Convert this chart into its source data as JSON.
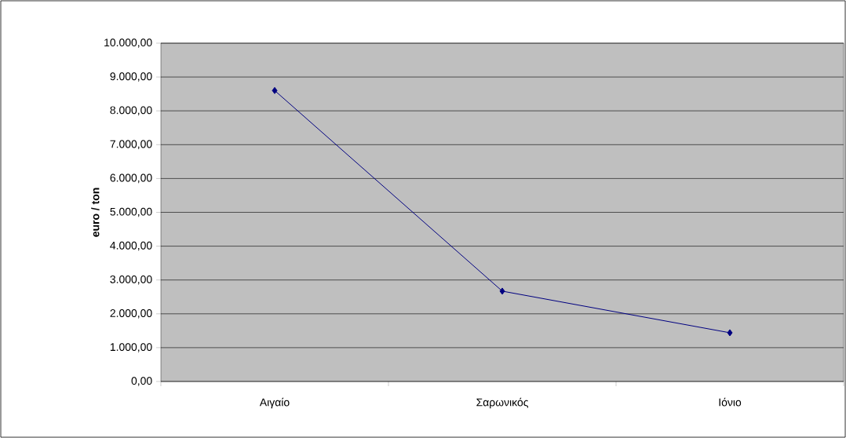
{
  "chart_data": {
    "type": "line",
    "ylabel": "euro / ton",
    "categories": [
      "Αιγαίο",
      "Σαρωνικός",
      "Ιόνιο"
    ],
    "series": [
      {
        "color": "#000080",
        "values": [
          8600,
          2670,
          1440
        ]
      }
    ],
    "ylim": [
      0,
      10000
    ],
    "yticks": [
      {
        "value": 0,
        "label": "0,00"
      },
      {
        "value": 1000,
        "label": "1.000,00"
      },
      {
        "value": 2000,
        "label": "2.000,00"
      },
      {
        "value": 3000,
        "label": "3.000,00"
      },
      {
        "value": 4000,
        "label": "4.000,00"
      },
      {
        "value": 5000,
        "label": "5.000,00"
      },
      {
        "value": 6000,
        "label": "6.000,00"
      },
      {
        "value": 7000,
        "label": "7.000,00"
      },
      {
        "value": 8000,
        "label": "8.000,00"
      },
      {
        "value": 9000,
        "label": "9.000,00"
      },
      {
        "value": 10000,
        "label": "10.000,00"
      }
    ],
    "grid": "y",
    "marker": "diamond",
    "line_style": "solid"
  }
}
